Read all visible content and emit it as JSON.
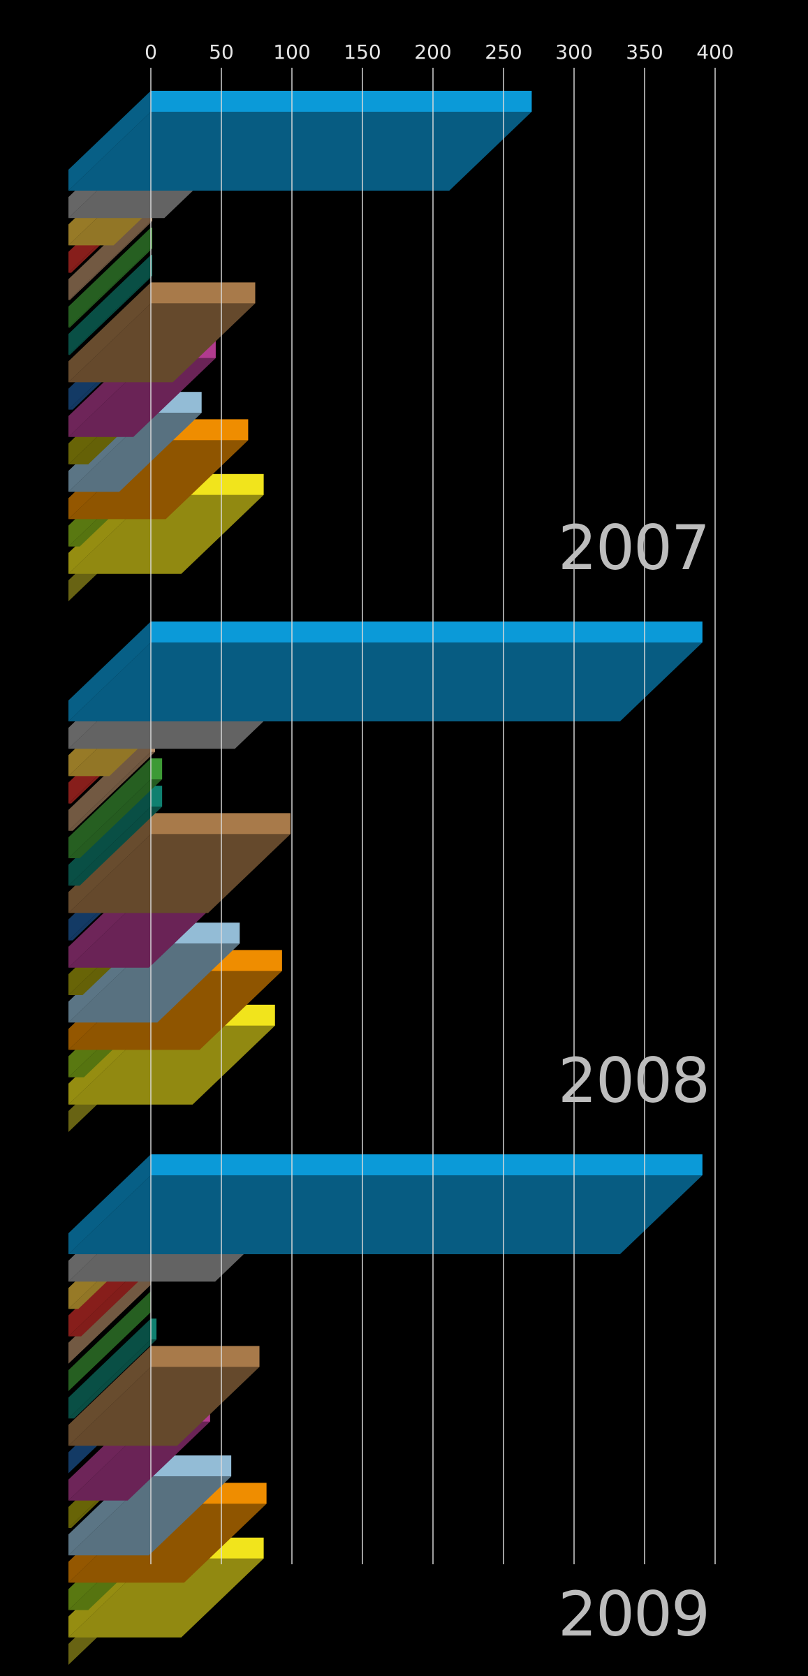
{
  "chart_data": {
    "type": "bar",
    "orientation": "horizontal",
    "style": "3d",
    "background": "#000000",
    "xlim": [
      0,
      400
    ],
    "ticks": [
      0,
      50,
      100,
      150,
      200,
      250,
      300,
      350,
      400
    ],
    "grid": true,
    "series_colors": [
      "#0b9ad8",
      "#a5a5a5",
      "#f4c53f",
      "#d9302c",
      "#b8906a",
      "#3d9a35",
      "#0f8070",
      "#a87a4a",
      "#1f5da3",
      "#b13b8f",
      "#a8a10b",
      "#93bcd6",
      "#ef8d00",
      "#8fc21b",
      "#f1e41c",
      "#a8a01f"
    ],
    "panels": [
      {
        "year": "2007",
        "values": [
          270,
          68,
          32,
          2,
          1,
          1,
          1,
          74,
          3,
          46,
          14,
          36,
          69,
          8,
          80,
          0
        ]
      },
      {
        "year": "2008",
        "values": [
          391,
          118,
          29,
          2,
          3,
          8,
          8,
          99,
          3,
          57,
          10,
          63,
          93,
          11,
          88,
          0
        ]
      },
      {
        "year": "2009",
        "values": [
          391,
          104,
          7,
          9,
          0,
          0,
          4,
          77,
          0,
          42,
          2,
          57,
          82,
          14,
          80,
          0
        ]
      }
    ]
  }
}
